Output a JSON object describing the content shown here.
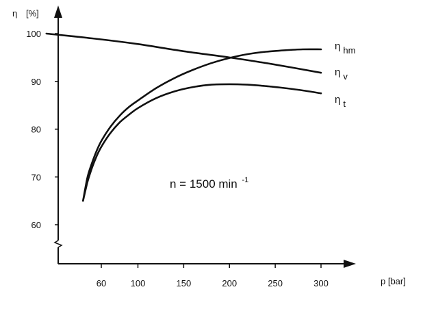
{
  "chart_data": {
    "type": "line",
    "title": "",
    "xlabel": "p [bar]",
    "ylabel_symbol": "η",
    "ylabel_unit": "[%]",
    "xlim": [
      0,
      300
    ],
    "ylim": [
      55,
      105
    ],
    "x_ticks": [
      60,
      100,
      150,
      200,
      250,
      300
    ],
    "y_ticks": [
      60,
      70,
      80,
      90,
      100
    ],
    "y_axis_break": true,
    "grid": false,
    "legend": "inline labels at right end of curves",
    "annotation": {
      "text": "n = 1500 min",
      "superscript": "-1"
    },
    "series": [
      {
        "name_symbol": "η",
        "name_sub": "hm",
        "color": "#111111",
        "x": [
          40,
          45,
          50,
          55,
          60,
          70,
          80,
          90,
          100,
          120,
          140,
          160,
          180,
          200,
          220,
          240,
          260,
          280,
          300
        ],
        "y": [
          65.0,
          70.0,
          73.0,
          75.5,
          77.5,
          80.5,
          82.8,
          84.6,
          86.0,
          88.6,
          90.7,
          92.4,
          93.8,
          94.9,
          95.7,
          96.2,
          96.5,
          96.7,
          96.7
        ]
      },
      {
        "name_symbol": "η",
        "name_sub": "v",
        "color": "#111111",
        "x": [
          0,
          50,
          100,
          150,
          200,
          250,
          300
        ],
        "y": [
          100.0,
          99.0,
          97.8,
          96.3,
          95.0,
          93.5,
          91.8
        ]
      },
      {
        "name_symbol": "η",
        "name_sub": "t",
        "color": "#111111",
        "x": [
          40,
          45,
          50,
          55,
          60,
          70,
          80,
          90,
          100,
          120,
          140,
          160,
          180,
          200,
          220,
          240,
          260,
          280,
          300
        ],
        "y": [
          65.0,
          69.0,
          72.0,
          74.4,
          76.3,
          79.2,
          81.4,
          83.0,
          84.4,
          86.5,
          87.9,
          88.8,
          89.3,
          89.4,
          89.3,
          89.0,
          88.6,
          88.1,
          87.5
        ]
      }
    ]
  }
}
